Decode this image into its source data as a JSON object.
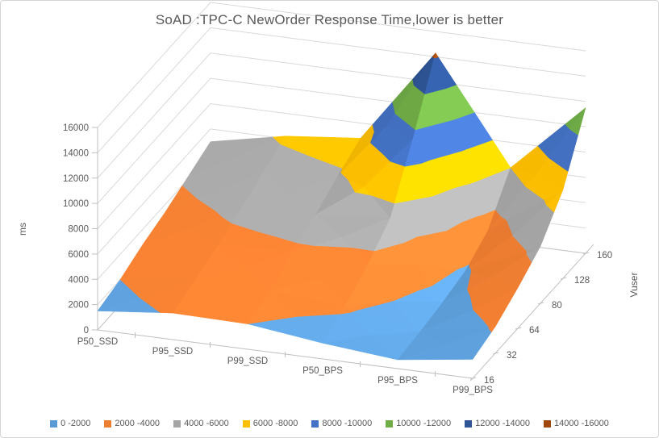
{
  "window": {
    "background": "#FFFFFF",
    "border_color": "#D5D5D5"
  },
  "chart_data": {
    "type": "surface",
    "title": "SoAD :TPC-C NewOrder Response Time,lower is better",
    "ylabel": "ms",
    "depth_axis_label": "Vuser",
    "categories": [
      "P50_SSD",
      "P95_SSD",
      "P99_SSD",
      "P50_BPS",
      "P95_BPS",
      "P99_BPS"
    ],
    "vusers": [
      "16",
      "32",
      "64",
      "80",
      "128",
      "160"
    ],
    "series": [
      {
        "name": "16",
        "values": [
          1500,
          2100,
          2000,
          1250,
          700,
          1500
        ]
      },
      {
        "name": "32",
        "values": [
          2000,
          2700,
          2600,
          2200,
          950,
          2100
        ]
      },
      {
        "name": "64",
        "values": [
          2800,
          3500,
          3800,
          3500,
          1300,
          3200
        ]
      },
      {
        "name": "80",
        "values": [
          3400,
          4300,
          4700,
          5200,
          1800,
          4500
        ]
      },
      {
        "name": "128",
        "values": [
          4200,
          5300,
          5800,
          9500,
          3000,
          7000
        ]
      },
      {
        "name": "160",
        "values": [
          5000,
          6200,
          6800,
          14300,
          6000,
          11500
        ]
      }
    ],
    "ylim": [
      0,
      16000
    ],
    "ytick_step": 2000,
    "yticks": [
      "0",
      "2000",
      "4000",
      "6000",
      "8000",
      "10000",
      "12000",
      "14000",
      "16000"
    ],
    "bands": [
      {
        "label": "0 -2000",
        "color": "#5B9BD5"
      },
      {
        "label": "2000 -4000",
        "color": "#ED7D31"
      },
      {
        "label": "4000 -6000",
        "color": "#A5A5A5"
      },
      {
        "label": "6000 -8000",
        "color": "#FFC000"
      },
      {
        "label": "8000 -10000",
        "color": "#4472C4"
      },
      {
        "label": "10000 -12000",
        "color": "#70AD47"
      },
      {
        "label": "12000 -14000",
        "color": "#2F5597"
      },
      {
        "label": "14000 -16000",
        "color": "#9E480E"
      }
    ],
    "legend_position": "bottom",
    "grid": true,
    "gridline_color": "#D9D9D9",
    "axis_line_color": "#BFBFBF",
    "text_color": "#595959"
  }
}
